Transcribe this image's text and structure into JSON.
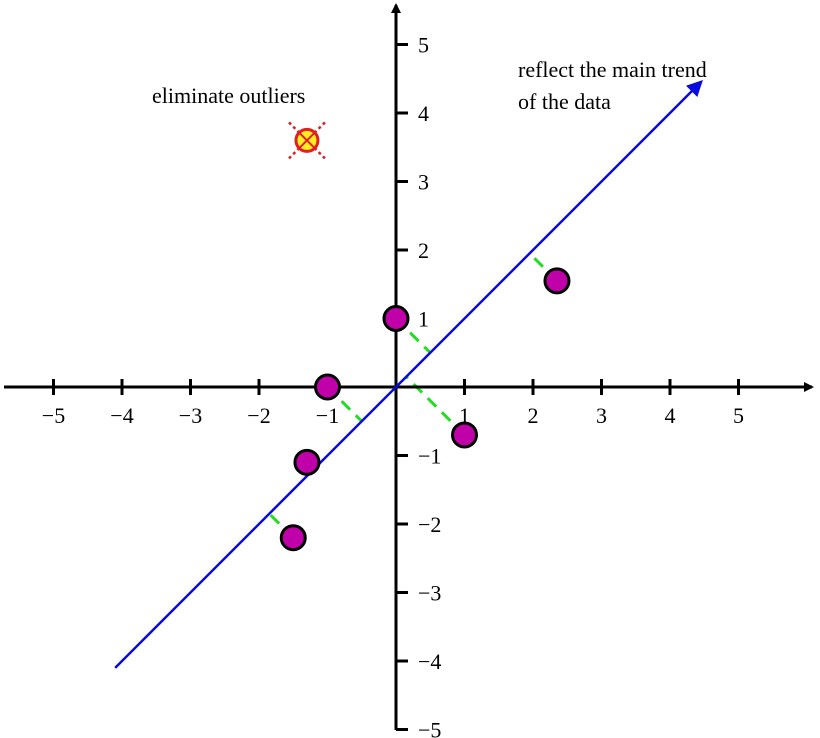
{
  "chart_data": {
    "type": "scatter",
    "title": "",
    "xlabel": "",
    "ylabel": "",
    "xlim": [
      -5.8,
      6.2
    ],
    "ylim": [
      -5.5,
      5.6
    ],
    "x_ticks": [
      -5,
      -4,
      -3,
      -2,
      -1,
      1,
      2,
      3,
      4,
      5
    ],
    "y_ticks": [
      5,
      4,
      3,
      2,
      1,
      -1,
      -2,
      -3,
      -4,
      -5
    ],
    "x_tick_labels": [
      "−5",
      "−4",
      "−3",
      "−2",
      "−1",
      "1",
      "2",
      "3",
      "4",
      "5"
    ],
    "y_tick_labels": [
      "5",
      "4",
      "3",
      "2",
      "1",
      "−1",
      "−2",
      "−3",
      "−4",
      "−5"
    ],
    "points": [
      {
        "x": -1.3,
        "y": -1.1
      },
      {
        "x": -1.5,
        "y": -2.2
      },
      {
        "x": -1.0,
        "y": 0.0
      },
      {
        "x": 0.0,
        "y": 1.0
      },
      {
        "x": 1.0,
        "y": -0.7
      },
      {
        "x": 2.35,
        "y": 1.55
      }
    ],
    "outlier": {
      "x": -1.3,
      "y": 3.6
    },
    "trend_line": {
      "from": [
        -4.1,
        -4.1
      ],
      "to": [
        4.45,
        4.45
      ]
    },
    "annotations": {
      "outlier_note": "eliminate outliers",
      "trend_note_line1": "reflect the main trend",
      "trend_note_line2": "of the data"
    },
    "colors": {
      "point_fill": "#c000a8",
      "trend_line": "#0a0adc",
      "residual": "#22dd22",
      "outlier_fill": "#ffee22",
      "outlier_stroke": "#e02020",
      "axis": "#000000"
    }
  }
}
